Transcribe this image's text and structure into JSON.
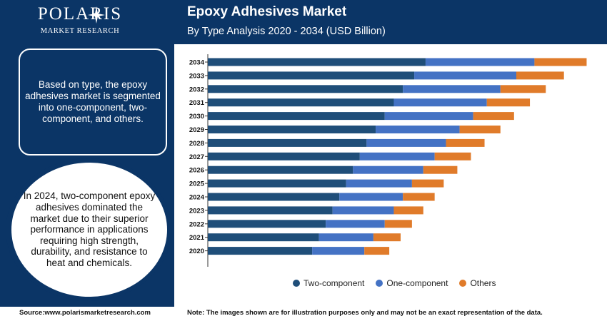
{
  "logo": {
    "name": "POLARIS",
    "sub": "MARKET RESEARCH"
  },
  "header": {
    "title": "Epoxy Adhesives Market",
    "subtitle": "By Type Analysis 2020 - 2034 (USD Billion)"
  },
  "left": {
    "box_text": "Based on type, the epoxy adhesives market is segmented into one-component, two-component, and others.",
    "circle_text": "In 2024, two-component epoxy adhesives dominated the market due to their superior performance in applications requiring high strength, durability, and resistance to heat and chemicals."
  },
  "footer": {
    "source": "Source:www.polarismarketresearch.com",
    "note": "Note: The images shown are for illustration purposes only and may not be an exact representation of the data."
  },
  "colors": {
    "navy": "#0b3566",
    "two": "#1f4e79",
    "one": "#4472c4",
    "others": "#e07b2a"
  },
  "chart_data": {
    "type": "bar",
    "orientation": "horizontal",
    "stacked": true,
    "categories": [
      "2020",
      "2021",
      "2022",
      "2023",
      "2024",
      "2025",
      "2026",
      "2027",
      "2028",
      "2029",
      "2030",
      "2031",
      "2032",
      "2033",
      "2034"
    ],
    "series": [
      {
        "name": "Two-component",
        "color": "#1f4e79",
        "values": [
          4.6,
          4.9,
          5.2,
          5.5,
          5.8,
          6.1,
          6.4,
          6.7,
          7.0,
          7.4,
          7.8,
          8.2,
          8.6,
          9.1,
          9.6
        ]
      },
      {
        "name": "One-component",
        "color": "#4472c4",
        "values": [
          2.3,
          2.4,
          2.6,
          2.7,
          2.8,
          2.9,
          3.1,
          3.3,
          3.5,
          3.7,
          3.9,
          4.1,
          4.3,
          4.5,
          4.8
        ]
      },
      {
        "name": "Others",
        "color": "#e07b2a",
        "values": [
          1.1,
          1.2,
          1.2,
          1.3,
          1.4,
          1.4,
          1.5,
          1.6,
          1.7,
          1.8,
          1.8,
          1.9,
          2.0,
          2.1,
          2.3
        ]
      }
    ],
    "xlim": [
      0,
      17
    ],
    "legend": "bottom",
    "grid": false
  }
}
